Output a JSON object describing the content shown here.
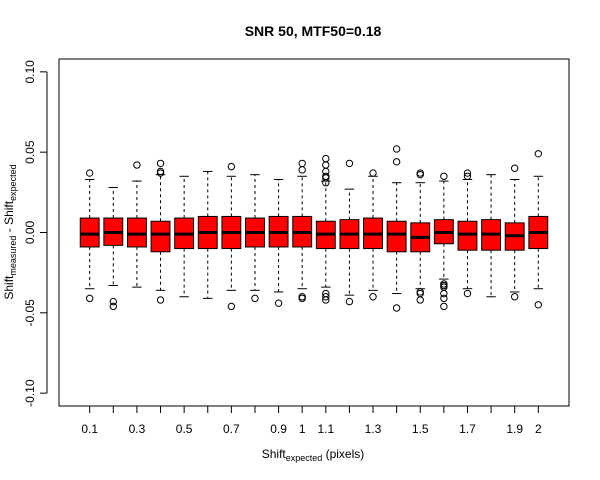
{
  "chart_data": {
    "type": "boxplot",
    "title": "SNR 50, MTF50=0.18",
    "xlabel": {
      "main": "Shift",
      "sub": "expected",
      "suffix": " (pixels)"
    },
    "ylabel": {
      "p1": "Shift",
      "s1": "measured",
      "mid": " - Shift",
      "s2": "expected"
    },
    "ylim": [
      -0.1,
      0.1
    ],
    "y_ticks": [
      -0.1,
      -0.05,
      0.0,
      0.05,
      0.1
    ],
    "y_tick_labels": [
      "-0.10",
      "-0.05",
      "0.00",
      "0.05",
      "0.10"
    ],
    "x_tick_labels": [
      "0.1",
      "0.3",
      "0.5",
      "0.7",
      "0.9",
      "1",
      "1.1",
      "1.3",
      "1.5",
      "1.7",
      "1.9",
      "2"
    ],
    "x_tick_label_positions": [
      1,
      3,
      5,
      7,
      9,
      10,
      11,
      13,
      15,
      17,
      19,
      20
    ],
    "box_color": "#ff0000",
    "boxes": [
      {
        "x": 1,
        "q1": -0.009,
        "median": -0.001,
        "q3": 0.009,
        "lo": -0.035,
        "hi": 0.033,
        "outliers": [
          0.037,
          -0.041
        ]
      },
      {
        "x": 2,
        "q1": -0.008,
        "median": 0.0,
        "q3": 0.009,
        "lo": -0.033,
        "hi": 0.028,
        "outliers": [
          -0.043,
          -0.046
        ]
      },
      {
        "x": 3,
        "q1": -0.009,
        "median": -0.001,
        "q3": 0.009,
        "lo": -0.034,
        "hi": 0.032,
        "outliers": [
          0.042
        ]
      },
      {
        "x": 4,
        "q1": -0.012,
        "median": -0.001,
        "q3": 0.007,
        "lo": -0.036,
        "hi": 0.036,
        "outliers": [
          0.043,
          0.038,
          0.037,
          -0.042
        ]
      },
      {
        "x": 5,
        "q1": -0.01,
        "median": -0.001,
        "q3": 0.009,
        "lo": -0.04,
        "hi": 0.035,
        "outliers": []
      },
      {
        "x": 6,
        "q1": -0.01,
        "median": 0.0,
        "q3": 0.01,
        "lo": -0.041,
        "hi": 0.038,
        "outliers": []
      },
      {
        "x": 7,
        "q1": -0.01,
        "median": 0.0,
        "q3": 0.01,
        "lo": -0.036,
        "hi": 0.035,
        "outliers": [
          0.041,
          -0.046
        ]
      },
      {
        "x": 8,
        "q1": -0.009,
        "median": 0.0,
        "q3": 0.009,
        "lo": -0.036,
        "hi": 0.036,
        "outliers": [
          -0.041
        ]
      },
      {
        "x": 9,
        "q1": -0.009,
        "median": 0.0,
        "q3": 0.01,
        "lo": -0.037,
        "hi": 0.033,
        "outliers": [
          -0.044
        ]
      },
      {
        "x": 10,
        "q1": -0.009,
        "median": 0.0,
        "q3": 0.01,
        "lo": -0.035,
        "hi": 0.035,
        "outliers": [
          0.043,
          0.039,
          -0.04,
          -0.041
        ]
      },
      {
        "x": 11,
        "q1": -0.01,
        "median": -0.001,
        "q3": 0.007,
        "lo": -0.034,
        "hi": 0.032,
        "outliers": [
          0.046,
          0.042,
          0.038,
          0.035,
          0.034,
          0.031,
          -0.038,
          -0.04,
          -0.042
        ]
      },
      {
        "x": 12,
        "q1": -0.01,
        "median": -0.001,
        "q3": 0.008,
        "lo": -0.039,
        "hi": 0.027,
        "outliers": [
          0.043,
          -0.043
        ]
      },
      {
        "x": 13,
        "q1": -0.01,
        "median": -0.001,
        "q3": 0.009,
        "lo": -0.036,
        "hi": 0.035,
        "outliers": [
          0.037,
          -0.04
        ]
      },
      {
        "x": 14,
        "q1": -0.012,
        "median": -0.001,
        "q3": 0.007,
        "lo": -0.038,
        "hi": 0.031,
        "outliers": [
          0.052,
          0.044,
          -0.047
        ]
      },
      {
        "x": 15,
        "q1": -0.012,
        "median": -0.003,
        "q3": 0.006,
        "lo": -0.035,
        "hi": 0.031,
        "outliers": [
          0.037,
          0.036,
          -0.037,
          -0.038,
          -0.042
        ]
      },
      {
        "x": 16,
        "q1": -0.007,
        "median": 0.0,
        "q3": 0.008,
        "lo": -0.029,
        "hi": 0.032,
        "outliers": [
          0.035,
          -0.032,
          -0.033,
          -0.034,
          -0.038,
          -0.041,
          -0.046
        ]
      },
      {
        "x": 17,
        "q1": -0.011,
        "median": -0.001,
        "q3": 0.007,
        "lo": -0.035,
        "hi": 0.033,
        "outliers": [
          0.037,
          0.035,
          -0.038
        ]
      },
      {
        "x": 18,
        "q1": -0.011,
        "median": -0.001,
        "q3": 0.008,
        "lo": -0.04,
        "hi": 0.036,
        "outliers": []
      },
      {
        "x": 19,
        "q1": -0.011,
        "median": -0.002,
        "q3": 0.006,
        "lo": -0.037,
        "hi": 0.033,
        "outliers": [
          0.04,
          -0.04
        ]
      },
      {
        "x": 20,
        "q1": -0.01,
        "median": 0.0,
        "q3": 0.01,
        "lo": -0.035,
        "hi": 0.035,
        "outliers": [
          0.049,
          -0.045
        ]
      }
    ]
  }
}
